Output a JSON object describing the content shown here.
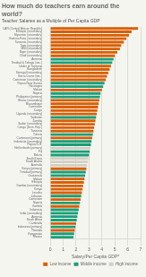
{
  "chart_data": {
    "type": "bar",
    "orientation": "horizontal",
    "title": "How much do teachers earn around the world?",
    "subtitle": "Teacher Salaries as a Multiple of Per Capita GDP",
    "xlabel": "Salary/Per Capita GDP*",
    "categories": [
      "CAR (Central African Republic)",
      "Ethiopia (secondary)",
      "Myanmar (secondary)",
      "Burkina Faso (secondary)",
      "Tanzania (secondary)",
      "Togo (secondary)",
      "Mali (secondary)",
      "Niger (secondary)",
      "Chad (secondary)",
      "Armenia",
      "Trinidad & Tobago (sec.)",
      "Under of Tanzania",
      "Bangladesh",
      "Senegal (secondary)",
      "Sierra Leone (sec.)",
      "Cameroon (secondary)",
      "Papua New Guinea",
      "Nicaragua",
      "Malawi",
      "Nigeria",
      "Philippines (primary)",
      "Ghana (secondary)",
      "Mozambique",
      "Cameroon",
      "Congo",
      "Uganda (secondary)",
      "Tajikistan",
      "Zambia",
      "Sudan (secondary)",
      "Congo (Dem. Rep.)",
      "Tanzania",
      "Tunisia",
      "Cameroon (primary)",
      "Indonesia (secondary)",
      "Papua N.G.",
      "Netherlands (primary)",
      "Fiji",
      "Bolivia",
      "South Korea",
      "Saudi Arabia",
      "Australia",
      "Kenya (primary)",
      "Trinidad (primary)",
      "Guatemala",
      "Malawi",
      "Ethiopia",
      "Gambia (secondary)",
      "Kenya",
      "Lesotho",
      "Lebanon",
      "Cameroon",
      "Nigeria",
      "Gambia",
      "Indonesia",
      "India (secondary)",
      "Armenia",
      "South Africa",
      "Cambodia",
      "Indonesia (primary)",
      "Rwanda",
      "Kyrgyzstan",
      "Mexico"
    ],
    "series": [
      {
        "name": "Low income",
        "color": "#d95f02",
        "values": [
          6.8,
          6.3,
          6.1,
          5.9,
          5.7,
          5.5,
          5.4,
          5.2,
          5.0,
          null,
          null,
          4.7,
          4.6,
          4.5,
          4.4,
          4.3,
          null,
          null,
          4.0,
          null,
          null,
          3.8,
          3.75,
          3.7,
          3.65,
          3.6,
          null,
          3.5,
          3.45,
          3.4,
          3.35,
          null,
          3.25,
          null,
          null,
          null,
          null,
          null,
          null,
          null,
          null,
          2.8,
          null,
          null,
          2.65,
          2.6,
          2.55,
          2.5,
          2.45,
          null,
          2.35,
          null,
          2.25,
          null,
          null,
          null,
          null,
          2.0,
          null,
          1.9,
          null,
          null
        ]
      },
      {
        "name": "Middle income",
        "color": "#1b9e77",
        "values": [
          null,
          null,
          null,
          null,
          null,
          null,
          null,
          null,
          null,
          4.9,
          4.8,
          null,
          null,
          null,
          null,
          null,
          4.2,
          4.1,
          null,
          3.9,
          3.85,
          null,
          null,
          null,
          null,
          null,
          3.55,
          null,
          null,
          null,
          null,
          3.3,
          null,
          3.2,
          3.15,
          null,
          3.05,
          3.0,
          null,
          null,
          null,
          null,
          2.75,
          2.7,
          null,
          null,
          null,
          null,
          null,
          2.4,
          null,
          2.3,
          null,
          2.2,
          2.15,
          2.1,
          2.05,
          null,
          1.95,
          null,
          1.85,
          1.8
        ]
      },
      {
        "name": "High income",
        "color": "#d3cfc3",
        "values": [
          null,
          null,
          null,
          null,
          null,
          null,
          null,
          null,
          null,
          null,
          null,
          null,
          null,
          null,
          null,
          null,
          null,
          null,
          null,
          null,
          null,
          null,
          null,
          null,
          null,
          null,
          null,
          null,
          null,
          null,
          null,
          null,
          null,
          null,
          null,
          3.1,
          null,
          null,
          2.95,
          2.9,
          2.85,
          null,
          null,
          null,
          null,
          null,
          null,
          null,
          null,
          null,
          null,
          null,
          null,
          null,
          null,
          null,
          null,
          null,
          null,
          null,
          null,
          null
        ]
      }
    ],
    "xlim": [
      0,
      7
    ],
    "xticks": [
      0,
      1,
      2,
      3,
      4,
      5,
      6,
      7
    ],
    "grid": true,
    "legend": "lower right"
  }
}
